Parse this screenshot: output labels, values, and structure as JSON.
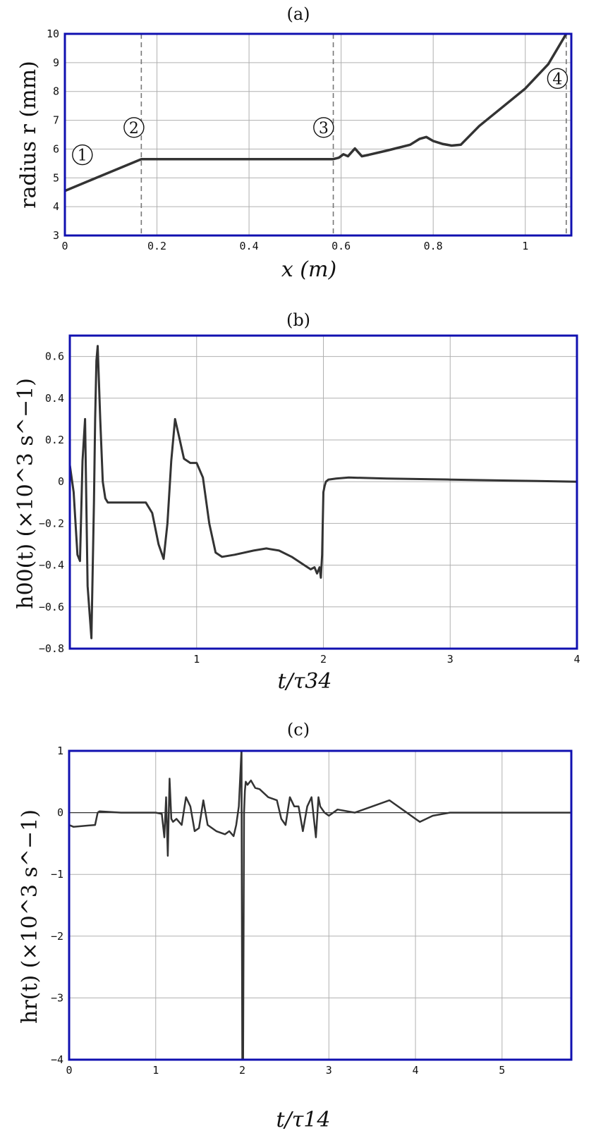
{
  "chart_data": [
    {
      "id": "a",
      "type": "line",
      "title": "(a)",
      "xlabel": "x (m)",
      "ylabel": "radius r  (mm)",
      "xlim": [
        0,
        1.1
      ],
      "ylim": [
        3,
        10
      ],
      "xticks": [
        0,
        0.2,
        0.4,
        0.6,
        0.8,
        1
      ],
      "xtick_labels": [
        "0",
        "0.2",
        "0.4",
        "0.6",
        "0.8",
        "1"
      ],
      "yticks": [
        3,
        4,
        5,
        6,
        7,
        8,
        9,
        10
      ],
      "ytick_labels": [
        "3",
        "4",
        "5",
        "6",
        "7",
        "8",
        "9",
        "10"
      ],
      "grid": true,
      "frame_color": "#1010b0",
      "line_color": "#333333",
      "dashed_lines_x": [
        0.166,
        0.583,
        1.089
      ],
      "markers": [
        {
          "label": "1",
          "x": 0.038,
          "y": 5.8
        },
        {
          "label": "2",
          "x": 0.15,
          "y": 6.75
        },
        {
          "label": "3",
          "x": 0.562,
          "y": 6.75
        },
        {
          "label": "4",
          "x": 1.07,
          "y": 8.45
        }
      ],
      "series": [
        {
          "x": [
            0,
            0.166,
            0.2,
            0.4,
            0.583,
            0.595,
            0.605,
            0.615,
            0.63,
            0.645,
            0.66,
            0.7,
            0.75,
            0.77,
            0.785,
            0.8,
            0.82,
            0.84,
            0.86,
            0.9,
            0.95,
            1.0,
            1.05,
            1.089
          ],
          "y": [
            4.55,
            5.65,
            5.65,
            5.65,
            5.65,
            5.7,
            5.82,
            5.75,
            6.02,
            5.75,
            5.8,
            5.95,
            6.15,
            6.35,
            6.42,
            6.28,
            6.18,
            6.12,
            6.15,
            6.8,
            7.45,
            8.1,
            8.95,
            10.0
          ]
        }
      ]
    },
    {
      "id": "b",
      "type": "line",
      "title": "(b)",
      "xlabel": "t/τ34",
      "ylabel": "h00(t) (×10^3 s^−1)",
      "xlim": [
        0,
        4
      ],
      "ylim": [
        -0.8,
        0.7
      ],
      "xticks": [
        1,
        2,
        3,
        4
      ],
      "xtick_labels": [
        "1",
        "2",
        "3",
        "4"
      ],
      "yticks": [
        -0.8,
        -0.6,
        -0.4,
        -0.2,
        0,
        0.2,
        0.4,
        0.6
      ],
      "ytick_labels": [
        "−0.8",
        "−0.6",
        "−0.4",
        "−0.2",
        "0",
        "0.2",
        "0.4",
        "0.6"
      ],
      "grid": true,
      "frame_color": "#1010b0",
      "line_color": "#333333",
      "series": [
        {
          "x": [
            0,
            0.03,
            0.06,
            0.08,
            0.1,
            0.12,
            0.14,
            0.17,
            0.19,
            0.2,
            0.21,
            0.22,
            0.24,
            0.26,
            0.28,
            0.3,
            0.35,
            0.45,
            0.6,
            0.65,
            0.7,
            0.74,
            0.77,
            0.8,
            0.83,
            0.86,
            0.9,
            0.95,
            1.0,
            1.05,
            1.1,
            1.15,
            1.2,
            1.3,
            1.45,
            1.55,
            1.65,
            1.75,
            1.85,
            1.9,
            1.93,
            1.95,
            1.97,
            1.98,
            1.99,
            2.0,
            2.01,
            2.02,
            2.04,
            2.1,
            2.2,
            2.5,
            3.0,
            3.5,
            4.0
          ],
          "y": [
            0.08,
            -0.05,
            -0.35,
            -0.38,
            0.1,
            0.3,
            -0.5,
            -0.75,
            -0.1,
            0.3,
            0.58,
            0.65,
            0.3,
            0.0,
            -0.08,
            -0.1,
            -0.1,
            -0.1,
            -0.1,
            -0.15,
            -0.3,
            -0.37,
            -0.2,
            0.1,
            0.3,
            0.22,
            0.11,
            0.09,
            0.09,
            0.02,
            -0.2,
            -0.34,
            -0.36,
            -0.35,
            -0.33,
            -0.32,
            -0.33,
            -0.36,
            -0.4,
            -0.42,
            -0.41,
            -0.44,
            -0.41,
            -0.46,
            -0.35,
            -0.05,
            -0.02,
            0.0,
            0.01,
            0.015,
            0.02,
            0.015,
            0.01,
            0.005,
            0.0
          ]
        }
      ]
    },
    {
      "id": "c",
      "type": "line",
      "title": "(c)",
      "xlabel": "t/τ14",
      "ylabel": "hr(t) (×10^3 s^−1)",
      "xlim": [
        0,
        5.8
      ],
      "ylim": [
        -4,
        1
      ],
      "xticks": [
        0,
        1,
        2,
        3,
        4,
        5
      ],
      "xtick_labels": [
        "0",
        "1",
        "2",
        "3",
        "4",
        "5"
      ],
      "yticks": [
        -4,
        -3,
        -2,
        -1,
        0,
        1
      ],
      "ytick_labels": [
        "−4",
        "−3",
        "−2",
        "−1",
        "0",
        "1"
      ],
      "grid": true,
      "frame_color": "#1010b0",
      "line_color": "#333333",
      "series": [
        {
          "x": [
            0,
            0.05,
            0.3,
            0.33,
            0.35,
            0.6,
            1.0,
            1.07,
            1.1,
            1.12,
            1.14,
            1.16,
            1.18,
            1.2,
            1.24,
            1.3,
            1.35,
            1.4,
            1.45,
            1.5,
            1.55,
            1.6,
            1.7,
            1.8,
            1.85,
            1.9,
            1.93,
            1.96,
            1.99,
            2.0,
            2.01,
            2.02,
            2.03,
            2.04,
            2.06,
            2.1,
            2.15,
            2.2,
            2.3,
            2.4,
            2.45,
            2.5,
            2.55,
            2.6,
            2.65,
            2.7,
            2.75,
            2.8,
            2.85,
            2.88,
            2.9,
            2.95,
            3.0,
            3.1,
            3.3,
            3.5,
            3.7,
            3.75,
            3.9,
            4.0,
            4.05,
            4.2,
            4.4,
            4.6,
            5.0,
            5.5,
            5.8
          ],
          "y": [
            -0.2,
            -0.23,
            -0.2,
            0.0,
            0.02,
            0.0,
            0.0,
            -0.02,
            -0.4,
            0.25,
            -0.7,
            0.55,
            -0.1,
            -0.15,
            -0.1,
            -0.2,
            0.25,
            0.1,
            -0.3,
            -0.25,
            0.2,
            -0.2,
            -0.3,
            -0.35,
            -0.3,
            -0.38,
            -0.2,
            0.1,
            1.0,
            -4.0,
            -4.0,
            0.0,
            0.35,
            0.5,
            0.45,
            0.52,
            0.4,
            0.38,
            0.25,
            0.2,
            -0.1,
            -0.2,
            0.25,
            0.1,
            0.1,
            -0.3,
            0.1,
            0.25,
            -0.4,
            0.25,
            0.1,
            0.0,
            -0.05,
            0.05,
            0.0,
            0.1,
            0.2,
            0.15,
            0.0,
            -0.1,
            -0.15,
            -0.05,
            0.0,
            0.0,
            0.0,
            0.0,
            0.0
          ]
        }
      ]
    }
  ]
}
